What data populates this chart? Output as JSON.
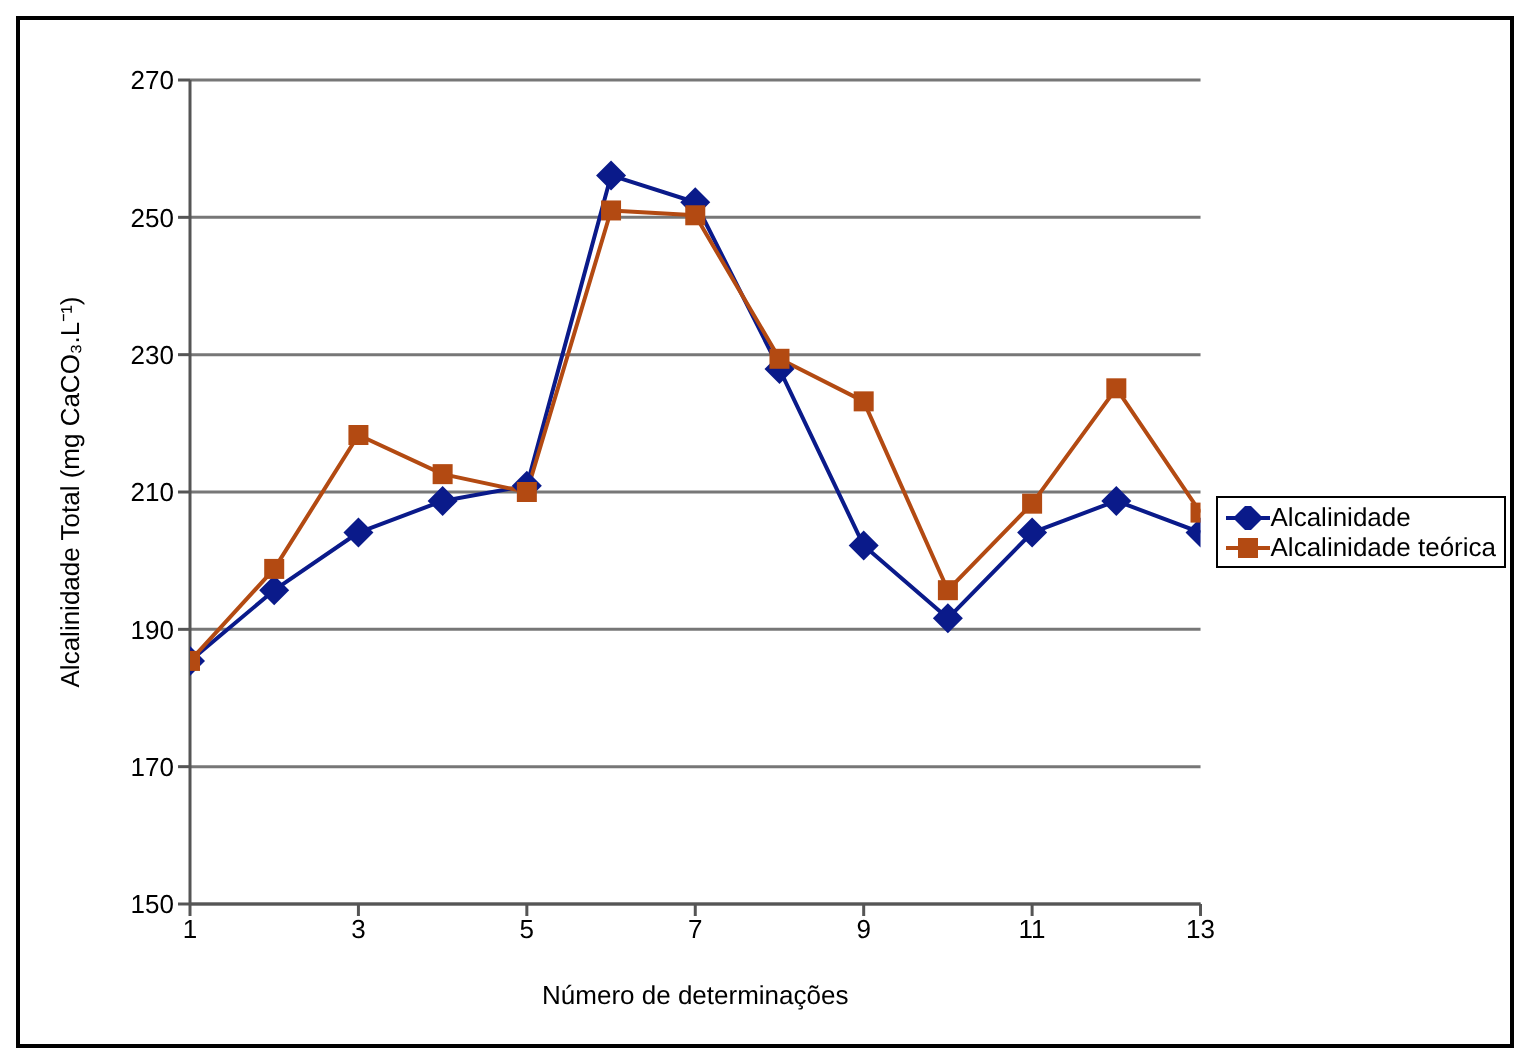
{
  "chart_data": {
    "type": "line",
    "xlabel": "Número de determinações",
    "ylabel": "Alcalinidade Total (mg CaCO₃.L⁻¹)",
    "x": [
      1,
      2,
      3,
      4,
      5,
      6,
      7,
      8,
      9,
      10,
      11,
      12,
      13
    ],
    "series": [
      {
        "name": "Alcalinidade",
        "color": "#0a1a8a",
        "marker": "diamond",
        "values": [
          185.4,
          195.7,
          204.1,
          208.7,
          210.9,
          256.1,
          252.2,
          227.9,
          202.2,
          191.6,
          204.1,
          208.7,
          204.1
        ]
      },
      {
        "name": "Alcalinidade teórica",
        "color": "#b34a12",
        "marker": "square",
        "values": [
          185.4,
          198.8,
          218.3,
          212.6,
          210,
          251,
          250.3,
          229.4,
          223.2,
          195.7,
          208.3,
          225.1,
          207
        ]
      }
    ],
    "xlim": [
      1,
      13
    ],
    "xticks": [
      1,
      3,
      5,
      7,
      9,
      11,
      13
    ],
    "ylim": [
      150,
      270
    ],
    "yticks": [
      150,
      170,
      190,
      210,
      230,
      250,
      270
    ],
    "grid": "y",
    "legend": "right",
    "line_style": "solid"
  }
}
